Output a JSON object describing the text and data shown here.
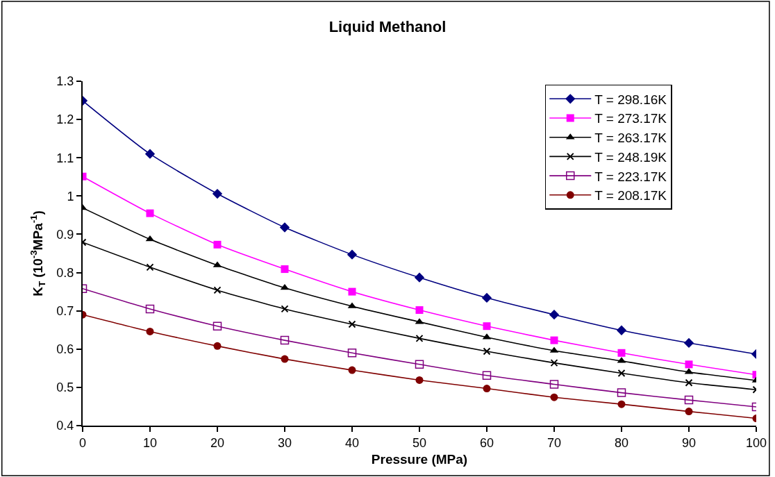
{
  "chart_data": {
    "type": "line",
    "title": "Liquid Methanol",
    "xlabel": "Pressure (MPa)",
    "ylabel": "K$_{T}$ (10$^{-3}$MPa$^{-1}$)",
    "x": [
      0,
      10,
      20,
      30,
      40,
      50,
      60,
      70,
      80,
      90,
      100
    ],
    "xlim": [
      0,
      100
    ],
    "xticks": [
      0,
      10,
      20,
      30,
      40,
      50,
      60,
      70,
      80,
      90,
      100
    ],
    "ylim": [
      0.4,
      1.3
    ],
    "yticks": [
      0.4,
      0.5,
      0.6,
      0.7,
      0.8,
      0.9,
      1,
      1.1,
      1.2,
      1.3
    ],
    "legend": "top right",
    "line_style": "solid",
    "series": [
      {
        "name": "T = 298.16K",
        "color": "#000080",
        "marker": "diamond",
        "values": [
          1.249,
          1.11,
          1.006,
          0.918,
          0.847,
          0.787,
          0.734,
          0.69,
          0.649,
          0.616,
          0.587
        ]
      },
      {
        "name": "T = 273.17K",
        "color": "#ff00ff",
        "marker": "square",
        "values": [
          1.051,
          0.955,
          0.873,
          0.809,
          0.75,
          0.702,
          0.66,
          0.623,
          0.59,
          0.56,
          0.533
        ]
      },
      {
        "name": "T = 263.17K",
        "color": "#000000",
        "marker": "triangle",
        "values": [
          0.969,
          0.887,
          0.819,
          0.76,
          0.712,
          0.671,
          0.631,
          0.596,
          0.569,
          0.54,
          0.518
        ]
      },
      {
        "name": "T = 248.19K",
        "color": "#000000",
        "marker": "cross",
        "values": [
          0.879,
          0.814,
          0.754,
          0.705,
          0.665,
          0.628,
          0.594,
          0.564,
          0.537,
          0.512,
          0.494
        ]
      },
      {
        "name": "T = 223.17K",
        "color": "#800080",
        "marker": "square-open",
        "values": [
          0.758,
          0.705,
          0.66,
          0.623,
          0.59,
          0.56,
          0.531,
          0.508,
          0.486,
          0.467,
          0.449
        ]
      },
      {
        "name": "T = 208.17K",
        "color": "#800000",
        "marker": "circle",
        "values": [
          0.69,
          0.646,
          0.608,
          0.574,
          0.545,
          0.519,
          0.497,
          0.474,
          0.456,
          0.437,
          0.419
        ]
      }
    ]
  }
}
